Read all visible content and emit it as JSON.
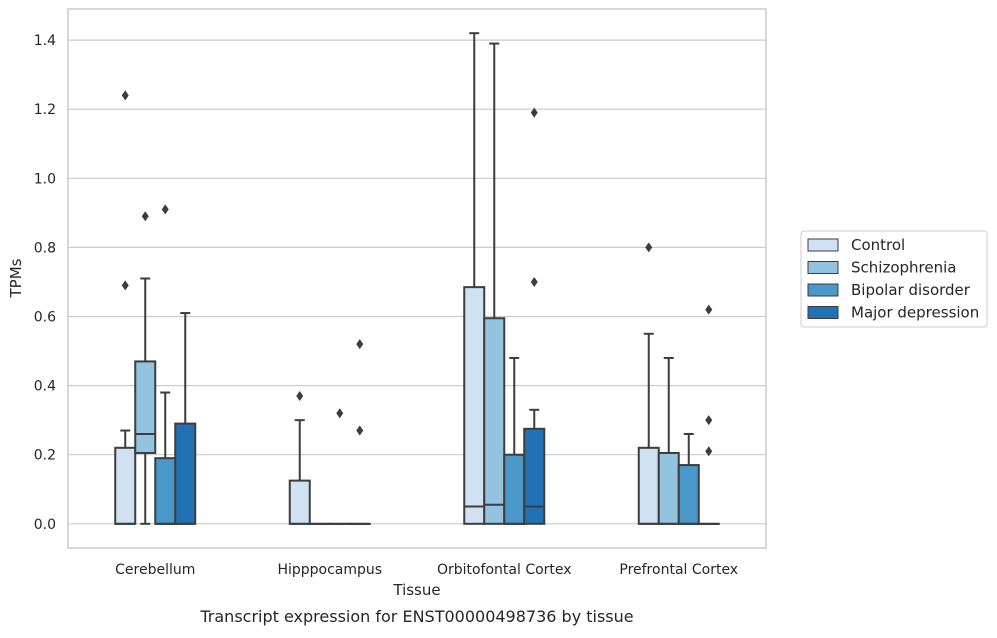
{
  "chart_data": {
    "type": "box",
    "xlabel": "Tissue",
    "ylabel": "TPMs",
    "caption": "Transcript expression for ENST00000498736 by tissue",
    "ylim": [
      -0.07,
      1.49
    ],
    "yticks": [
      0.0,
      0.2,
      0.4,
      0.6,
      0.8,
      1.0,
      1.2,
      1.4
    ],
    "ytick_labels": [
      "0.0",
      "0.2",
      "0.4",
      "0.6",
      "0.8",
      "1.0",
      "1.2",
      "1.4"
    ],
    "grid": true,
    "legend_position": "right",
    "categories": [
      "Cerebellum",
      "Hipppocampus",
      "Orbitofontal Cortex",
      "Prefrontal Cortex"
    ],
    "series": [
      {
        "name": "Control",
        "color": "#d0e1f1",
        "boxes": [
          {
            "whisker_low": 0.0,
            "q1": 0.0,
            "median": 0.0,
            "q3": 0.22,
            "whisker_high": 0.27,
            "outliers": [
              0.69,
              1.24
            ]
          },
          {
            "whisker_low": 0.0,
            "q1": 0.0,
            "median": 0.0,
            "q3": 0.125,
            "whisker_high": 0.3,
            "outliers": [
              0.37
            ]
          },
          {
            "whisker_low": 0.0,
            "q1": 0.0,
            "median": 0.05,
            "q3": 0.685,
            "whisker_high": 1.42,
            "outliers": []
          },
          {
            "whisker_low": 0.0,
            "q1": 0.0,
            "median": 0.0,
            "q3": 0.22,
            "whisker_high": 0.55,
            "outliers": [
              0.8
            ]
          }
        ]
      },
      {
        "name": "Schizophrenia",
        "color": "#93c3df",
        "boxes": [
          {
            "whisker_low": 0.0,
            "q1": 0.205,
            "median": 0.26,
            "q3": 0.47,
            "whisker_high": 0.71,
            "outliers": [
              0.89
            ]
          },
          {
            "whisker_low": 0.0,
            "q1": 0.0,
            "median": 0.0,
            "q3": 0.0,
            "whisker_high": 0.0,
            "outliers": []
          },
          {
            "whisker_low": 0.0,
            "q1": 0.0,
            "median": 0.055,
            "q3": 0.595,
            "whisker_high": 1.39,
            "outliers": []
          },
          {
            "whisker_low": 0.0,
            "q1": 0.0,
            "median": 0.0,
            "q3": 0.205,
            "whisker_high": 0.48,
            "outliers": []
          }
        ]
      },
      {
        "name": "Bipolar disorder",
        "color": "#4a98c9",
        "boxes": [
          {
            "whisker_low": 0.0,
            "q1": 0.0,
            "median": 0.0,
            "q3": 0.19,
            "whisker_high": 0.38,
            "outliers": [
              0.91
            ]
          },
          {
            "whisker_low": 0.0,
            "q1": 0.0,
            "median": 0.0,
            "q3": 0.0,
            "whisker_high": 0.0,
            "outliers": [
              0.32
            ]
          },
          {
            "whisker_low": 0.0,
            "q1": 0.0,
            "median": 0.0,
            "q3": 0.2,
            "whisker_high": 0.48,
            "outliers": []
          },
          {
            "whisker_low": 0.0,
            "q1": 0.0,
            "median": 0.0,
            "q3": 0.17,
            "whisker_high": 0.26,
            "outliers": []
          }
        ]
      },
      {
        "name": "Major depression",
        "color": "#2171b5",
        "boxes": [
          {
            "whisker_low": 0.0,
            "q1": 0.0,
            "median": 0.0,
            "q3": 0.29,
            "whisker_high": 0.61,
            "outliers": []
          },
          {
            "whisker_low": 0.0,
            "q1": 0.0,
            "median": 0.0,
            "q3": 0.0,
            "whisker_high": 0.0,
            "outliers": [
              0.27,
              0.52
            ]
          },
          {
            "whisker_low": 0.0,
            "q1": 0.0,
            "median": 0.05,
            "q3": 0.275,
            "whisker_high": 0.33,
            "outliers": [
              0.7,
              1.19
            ]
          },
          {
            "whisker_low": 0.0,
            "q1": 0.0,
            "median": 0.0,
            "q3": 0.0,
            "whisker_high": 0.0,
            "outliers": [
              0.21,
              0.3,
              0.62
            ]
          }
        ]
      }
    ]
  }
}
